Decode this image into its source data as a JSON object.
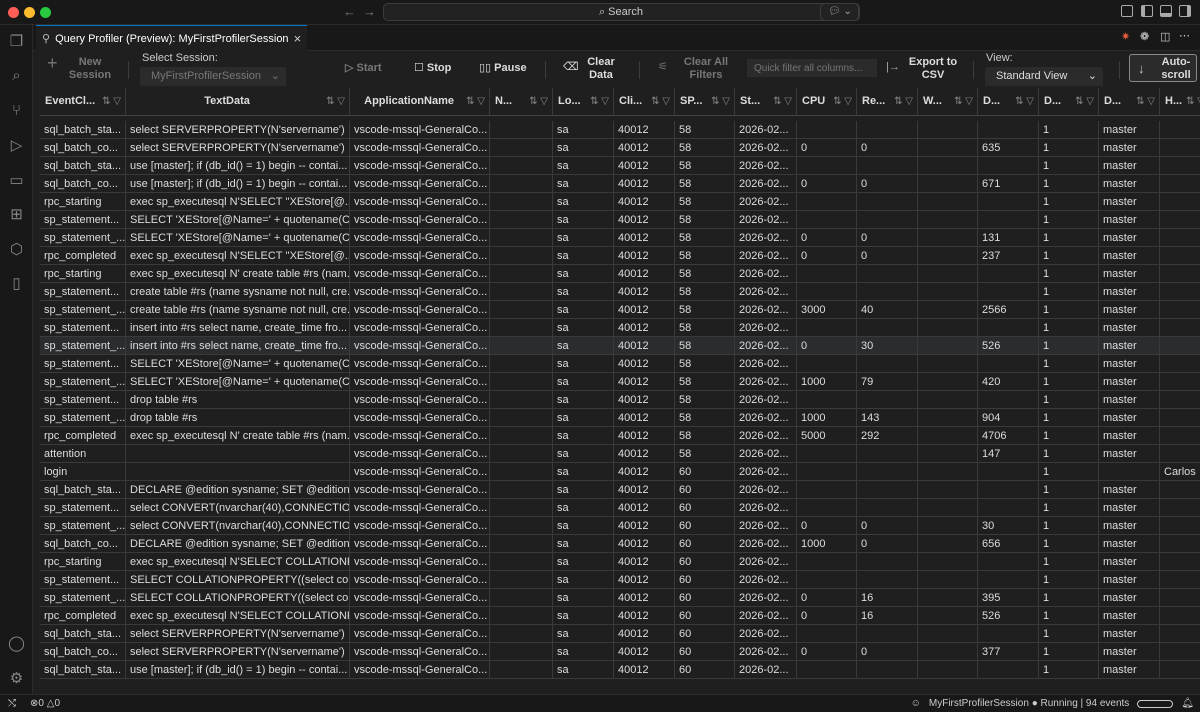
{
  "titlebar": {
    "search_label": "Search",
    "colors": {
      "close": "#ff5f57",
      "minimize": "#febc2e",
      "maximize": "#28c840"
    }
  },
  "tab": {
    "title": "Query Profiler (Preview): MyFirstProfilerSession",
    "close": "×"
  },
  "toolbar": {
    "new_session": "New\nSession",
    "select_session_label": "Select Session:",
    "select_session_value": "MyFirstProfilerSession",
    "start": "Start",
    "stop": "Stop",
    "pause": "Pause",
    "clear_data": "Clear\nData",
    "clear_all_filters": "Clear All\nFilters",
    "quick_filter_placeholder": "Quick filter all columns...",
    "export_csv": "Export to\nCSV",
    "view_label": "View:",
    "view_value": "Standard View",
    "autoscroll": "Auto-\nscroll"
  },
  "columns": [
    "EventCl...",
    "TextData",
    "ApplicationName",
    "N...",
    "Lo...",
    "Cli...",
    "SP...",
    "St...",
    "CPU",
    "Re...",
    "W...",
    "D...",
    "D...",
    "D...",
    "H..."
  ],
  "rows": [
    [
      "sql_batch_sta...",
      "select SERVERPROPERTY(N'servername')",
      "vscode-mssql-GeneralCo...",
      "",
      "sa",
      "40012",
      "58",
      "2026-02...",
      "",
      "",
      "",
      "",
      "1",
      "master",
      ""
    ],
    [
      "sql_batch_co...",
      "select SERVERPROPERTY(N'servername')",
      "vscode-mssql-GeneralCo...",
      "",
      "sa",
      "40012",
      "58",
      "2026-02...",
      "0",
      "0",
      "",
      "635",
      "1",
      "master",
      ""
    ],
    [
      "sql_batch_sta...",
      "use [master]; if (db_id() = 1) begin -- contai...",
      "vscode-mssql-GeneralCo...",
      "",
      "sa",
      "40012",
      "58",
      "2026-02...",
      "",
      "",
      "",
      "",
      "1",
      "master",
      ""
    ],
    [
      "sql_batch_co...",
      "use [master]; if (db_id() = 1) begin -- contai...",
      "vscode-mssql-GeneralCo...",
      "",
      "sa",
      "40012",
      "58",
      "2026-02...",
      "0",
      "0",
      "",
      "671",
      "1",
      "master",
      ""
    ],
    [
      "rpc_starting",
      "exec sp_executesql N'SELECT ''XEStore[@...",
      "vscode-mssql-GeneralCo...",
      "",
      "sa",
      "40012",
      "58",
      "2026-02...",
      "",
      "",
      "",
      "",
      "1",
      "master",
      ""
    ],
    [
      "sp_statement...",
      "SELECT 'XEStore[@Name=' + quotename(C...",
      "vscode-mssql-GeneralCo...",
      "",
      "sa",
      "40012",
      "58",
      "2026-02...",
      "",
      "",
      "",
      "",
      "1",
      "master",
      ""
    ],
    [
      "sp_statement_...",
      "SELECT 'XEStore[@Name=' + quotename(C...",
      "vscode-mssql-GeneralCo...",
      "",
      "sa",
      "40012",
      "58",
      "2026-02...",
      "0",
      "0",
      "",
      "131",
      "1",
      "master",
      ""
    ],
    [
      "rpc_completed",
      "exec sp_executesql N'SELECT ''XEStore[@...",
      "vscode-mssql-GeneralCo...",
      "",
      "sa",
      "40012",
      "58",
      "2026-02...",
      "0",
      "0",
      "",
      "237",
      "1",
      "master",
      ""
    ],
    [
      "rpc_starting",
      "exec sp_executesql N' create table #rs (nam...",
      "vscode-mssql-GeneralCo...",
      "",
      "sa",
      "40012",
      "58",
      "2026-02...",
      "",
      "",
      "",
      "",
      "1",
      "master",
      ""
    ],
    [
      "sp_statement...",
      "create table #rs (name sysname not null, cre...",
      "vscode-mssql-GeneralCo...",
      "",
      "sa",
      "40012",
      "58",
      "2026-02...",
      "",
      "",
      "",
      "",
      "1",
      "master",
      ""
    ],
    [
      "sp_statement_...",
      "create table #rs (name sysname not null, cre...",
      "vscode-mssql-GeneralCo...",
      "",
      "sa",
      "40012",
      "58",
      "2026-02...",
      "3000",
      "40",
      "",
      "2566",
      "1",
      "master",
      ""
    ],
    [
      "sp_statement...",
      "insert into #rs select name, create_time fro...",
      "vscode-mssql-GeneralCo...",
      "",
      "sa",
      "40012",
      "58",
      "2026-02...",
      "",
      "",
      "",
      "",
      "1",
      "master",
      ""
    ],
    [
      "sp_statement_...",
      "insert into #rs select name, create_time fro...",
      "vscode-mssql-GeneralCo...",
      "",
      "sa",
      "40012",
      "58",
      "2026-02...",
      "0",
      "30",
      "",
      "526",
      "1",
      "master",
      ""
    ],
    [
      "sp_statement...",
      "SELECT 'XEStore[@Name=' + quotename(C...",
      "vscode-mssql-GeneralCo...",
      "",
      "sa",
      "40012",
      "58",
      "2026-02...",
      "",
      "",
      "",
      "",
      "1",
      "master",
      ""
    ],
    [
      "sp_statement_...",
      "SELECT 'XEStore[@Name=' + quotename(C...",
      "vscode-mssql-GeneralCo...",
      "",
      "sa",
      "40012",
      "58",
      "2026-02...",
      "1000",
      "79",
      "",
      "420",
      "1",
      "master",
      ""
    ],
    [
      "sp_statement...",
      "drop table #rs",
      "vscode-mssql-GeneralCo...",
      "",
      "sa",
      "40012",
      "58",
      "2026-02...",
      "",
      "",
      "",
      "",
      "1",
      "master",
      ""
    ],
    [
      "sp_statement_...",
      "drop table #rs",
      "vscode-mssql-GeneralCo...",
      "",
      "sa",
      "40012",
      "58",
      "2026-02...",
      "1000",
      "143",
      "",
      "904",
      "1",
      "master",
      ""
    ],
    [
      "rpc_completed",
      "exec sp_executesql N' create table #rs (nam...",
      "vscode-mssql-GeneralCo...",
      "",
      "sa",
      "40012",
      "58",
      "2026-02...",
      "5000",
      "292",
      "",
      "4706",
      "1",
      "master",
      ""
    ],
    [
      "attention",
      "",
      "vscode-mssql-GeneralCo...",
      "",
      "sa",
      "40012",
      "58",
      "2026-02...",
      "",
      "",
      "",
      "147",
      "1",
      "master",
      ""
    ],
    [
      "login",
      "",
      "vscode-mssql-GeneralCo...",
      "",
      "sa",
      "40012",
      "60",
      "2026-02...",
      "",
      "",
      "",
      "",
      "1",
      "",
      "Carlos"
    ],
    [
      "sql_batch_sta...",
      "DECLARE @edition sysname; SET @edition ...",
      "vscode-mssql-GeneralCo...",
      "",
      "sa",
      "40012",
      "60",
      "2026-02...",
      "",
      "",
      "",
      "",
      "1",
      "master",
      ""
    ],
    [
      "sp_statement...",
      "select CONVERT(nvarchar(40),CONNECTIO...",
      "vscode-mssql-GeneralCo...",
      "",
      "sa",
      "40012",
      "60",
      "2026-02...",
      "",
      "",
      "",
      "",
      "1",
      "master",
      ""
    ],
    [
      "sp_statement_...",
      "select CONVERT(nvarchar(40),CONNECTIO...",
      "vscode-mssql-GeneralCo...",
      "",
      "sa",
      "40012",
      "60",
      "2026-02...",
      "0",
      "0",
      "",
      "30",
      "1",
      "master",
      ""
    ],
    [
      "sql_batch_co...",
      "DECLARE @edition sysname; SET @edition ...",
      "vscode-mssql-GeneralCo...",
      "",
      "sa",
      "40012",
      "60",
      "2026-02...",
      "1000",
      "0",
      "",
      "656",
      "1",
      "master",
      ""
    ],
    [
      "rpc_starting",
      "exec sp_executesql N'SELECT COLLATIONP...",
      "vscode-mssql-GeneralCo...",
      "",
      "sa",
      "40012",
      "60",
      "2026-02...",
      "",
      "",
      "",
      "",
      "1",
      "master",
      ""
    ],
    [
      "sp_statement...",
      "SELECT COLLATIONPROPERTY((select coll...",
      "vscode-mssql-GeneralCo...",
      "",
      "sa",
      "40012",
      "60",
      "2026-02...",
      "",
      "",
      "",
      "",
      "1",
      "master",
      ""
    ],
    [
      "sp_statement_...",
      "SELECT COLLATIONPROPERTY((select coll...",
      "vscode-mssql-GeneralCo...",
      "",
      "sa",
      "40012",
      "60",
      "2026-02...",
      "0",
      "16",
      "",
      "395",
      "1",
      "master",
      ""
    ],
    [
      "rpc_completed",
      "exec sp_executesql N'SELECT COLLATIONP...",
      "vscode-mssql-GeneralCo...",
      "",
      "sa",
      "40012",
      "60",
      "2026-02...",
      "0",
      "16",
      "",
      "526",
      "1",
      "master",
      ""
    ],
    [
      "sql_batch_sta...",
      "select SERVERPROPERTY(N'servername')",
      "vscode-mssql-GeneralCo...",
      "",
      "sa",
      "40012",
      "60",
      "2026-02...",
      "",
      "",
      "",
      "",
      "1",
      "master",
      ""
    ],
    [
      "sql_batch_co...",
      "select SERVERPROPERTY(N'servername')",
      "vscode-mssql-GeneralCo...",
      "",
      "sa",
      "40012",
      "60",
      "2026-02...",
      "0",
      "0",
      "",
      "377",
      "1",
      "master",
      ""
    ],
    [
      "sql_batch_sta...",
      "use [master]; if (db_id() = 1) begin -- contai...",
      "vscode-mssql-GeneralCo...",
      "",
      "sa",
      "40012",
      "60",
      "2026-02...",
      "",
      "",
      "",
      "",
      "1",
      "master",
      ""
    ]
  ],
  "selected_row": 12,
  "status": {
    "errors": "0",
    "warnings": "0",
    "session": "MyFirstProfilerSession",
    "state": "Running | 94 events"
  }
}
